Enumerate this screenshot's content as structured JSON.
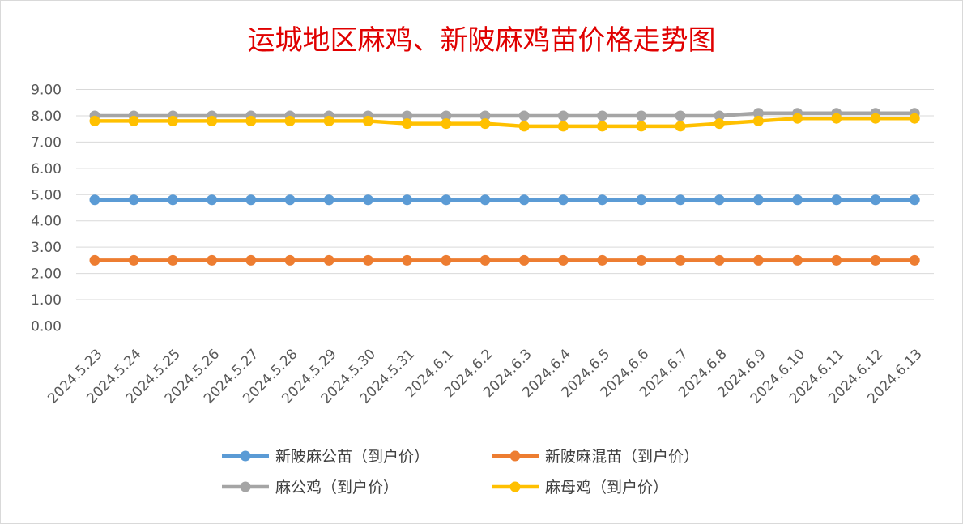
{
  "chart_data": {
    "type": "line",
    "title": "运城地区麻鸡、新陂麻鸡苗价格走势图",
    "categories": [
      "2024.5.23",
      "2024.5.24",
      "2024.5.25",
      "2024.5.26",
      "2024.5.27",
      "2024.5.28",
      "2024.5.29",
      "2024.5.30",
      "2024.5.31",
      "2024.6.1",
      "2024.6.2",
      "2024.6.3",
      "2024.6.4",
      "2024.6.5",
      "2024.6.6",
      "2024.6.7",
      "2024.6.8",
      "2024.6.9",
      "2024.6.10",
      "2024.6.11",
      "2024.6.12",
      "2024.6.13"
    ],
    "ylim": [
      0,
      9
    ],
    "yticks": [
      "0.00",
      "1.00",
      "2.00",
      "3.00",
      "4.00",
      "5.00",
      "6.00",
      "7.00",
      "8.00",
      "9.00"
    ],
    "grid": true,
    "legend_position": "bottom",
    "series": [
      {
        "name": "新陂麻公苗（到户价）",
        "color": "#5b9bd5",
        "values": [
          4.8,
          4.8,
          4.8,
          4.8,
          4.8,
          4.8,
          4.8,
          4.8,
          4.8,
          4.8,
          4.8,
          4.8,
          4.8,
          4.8,
          4.8,
          4.8,
          4.8,
          4.8,
          4.8,
          4.8,
          4.8,
          4.8
        ]
      },
      {
        "name": "新陂麻混苗（到户价）",
        "color": "#ed7d31",
        "values": [
          2.5,
          2.5,
          2.5,
          2.5,
          2.5,
          2.5,
          2.5,
          2.5,
          2.5,
          2.5,
          2.5,
          2.5,
          2.5,
          2.5,
          2.5,
          2.5,
          2.5,
          2.5,
          2.5,
          2.5,
          2.5,
          2.5
        ]
      },
      {
        "name": "麻公鸡（到户价）",
        "color": "#a5a5a5",
        "values": [
          8.0,
          8.0,
          8.0,
          8.0,
          8.0,
          8.0,
          8.0,
          8.0,
          8.0,
          8.0,
          8.0,
          8.0,
          8.0,
          8.0,
          8.0,
          8.0,
          8.0,
          8.1,
          8.1,
          8.1,
          8.1,
          8.1
        ]
      },
      {
        "name": "麻母鸡（到户价）",
        "color": "#ffc000",
        "values": [
          7.8,
          7.8,
          7.8,
          7.8,
          7.8,
          7.8,
          7.8,
          7.8,
          7.7,
          7.7,
          7.7,
          7.6,
          7.6,
          7.6,
          7.6,
          7.6,
          7.7,
          7.8,
          7.9,
          7.9,
          7.9,
          7.9
        ]
      }
    ]
  }
}
